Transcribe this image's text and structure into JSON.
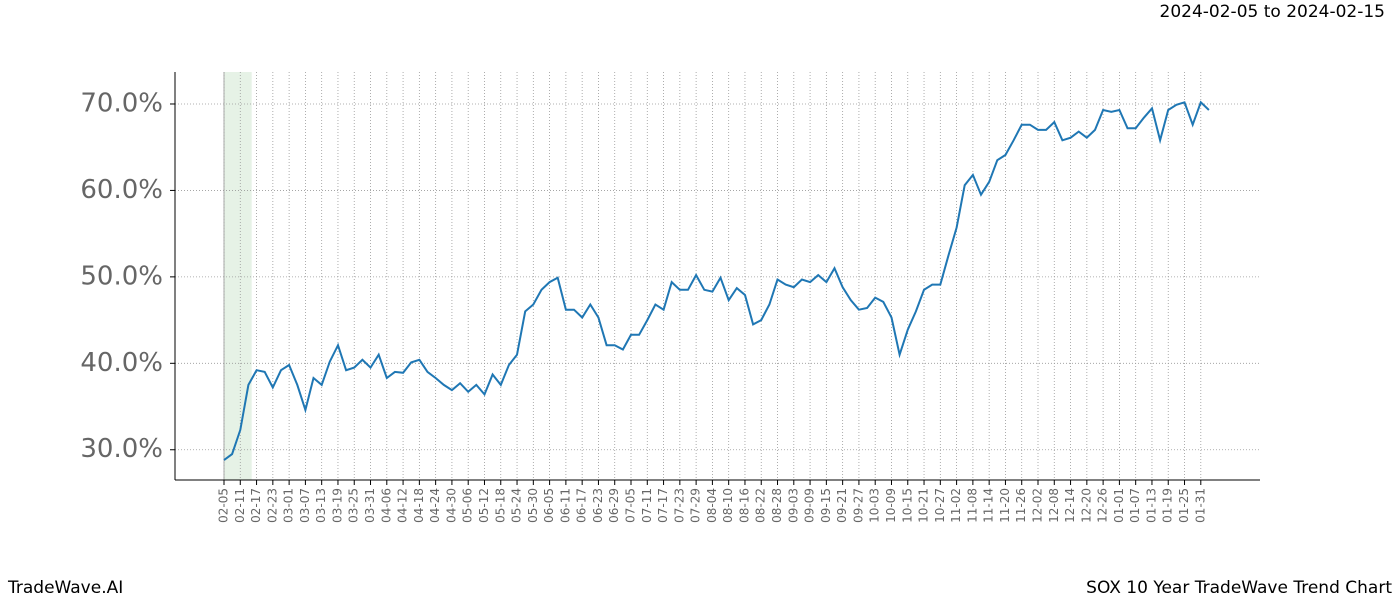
{
  "chart_data": {
    "type": "line",
    "title": "2024-02-05 to 2024-02-15",
    "footer_left": "TradeWave.AI",
    "footer_right": "SOX 10 Year TradeWave Trend Chart",
    "categories": [
      "02-05",
      null,
      "02-11",
      null,
      "02-17",
      null,
      "02-23",
      null,
      "03-01",
      null,
      "03-07",
      null,
      "03-13",
      null,
      "03-19",
      null,
      "03-25",
      null,
      "03-31",
      null,
      "04-06",
      null,
      "04-12",
      null,
      "04-18",
      null,
      "04-24",
      null,
      "04-30",
      null,
      "05-06",
      null,
      "05-12",
      null,
      "05-18",
      null,
      "05-24",
      null,
      "05-30",
      null,
      "06-05",
      null,
      "06-11",
      null,
      "06-17",
      null,
      "06-23",
      null,
      "06-29",
      null,
      "07-05",
      null,
      "07-11",
      null,
      "07-17",
      null,
      "07-23",
      null,
      "07-29",
      null,
      "08-04",
      null,
      "08-10",
      null,
      "08-16",
      null,
      "08-22",
      null,
      "08-28",
      null,
      "09-03",
      null,
      "09-09",
      null,
      "09-15",
      null,
      "09-21",
      null,
      "09-27",
      null,
      "10-03",
      null,
      "10-09",
      null,
      "10-15",
      null,
      "10-21",
      null,
      "10-27",
      null,
      "11-02",
      null,
      "11-08",
      null,
      "11-14",
      null,
      "11-20",
      null,
      "11-26",
      null,
      "12-02",
      null,
      "12-08",
      null,
      "12-14",
      null,
      "12-20",
      null,
      "12-26",
      null,
      "01-01",
      null,
      "01-07",
      null,
      "01-13",
      null,
      "01-19",
      null,
      "01-25",
      null,
      "01-31",
      null
    ],
    "series": [
      {
        "color": "#1f77b4",
        "values": [
          28.8,
          29.5,
          32.3,
          37.5,
          39.2,
          39.0,
          37.2,
          39.2,
          39.8,
          37.5,
          34.6,
          38.3,
          37.5,
          40.2,
          42.1,
          39.2,
          39.5,
          40.4,
          39.5,
          41.0,
          38.3,
          39.0,
          38.9,
          40.1,
          40.4,
          39.0,
          38.3,
          37.5,
          36.9,
          37.7,
          36.7,
          37.5,
          36.4,
          38.7,
          37.5,
          39.8,
          41.0,
          46.0,
          46.8,
          48.5,
          49.4,
          49.9,
          46.2,
          46.2,
          45.3,
          46.8,
          45.3,
          42.1,
          42.1,
          41.6,
          43.3,
          43.3,
          45.0,
          46.8,
          46.2,
          49.4,
          48.5,
          48.5,
          50.2,
          48.5,
          48.3,
          49.9,
          47.3,
          48.7,
          47.9,
          44.5,
          45.0,
          46.8,
          49.7,
          49.1,
          48.8,
          49.7,
          49.4,
          50.2,
          49.4,
          51.0,
          48.8,
          47.3,
          46.2,
          46.4,
          47.6,
          47.1,
          45.3,
          41.0,
          43.9,
          46.0,
          48.5,
          49.1,
          49.1,
          52.5,
          55.7,
          60.6,
          61.8,
          59.5,
          61.0,
          63.5,
          64.1,
          65.8,
          67.6,
          67.6,
          67.0,
          67.0,
          67.9,
          65.8,
          66.1,
          66.8,
          66.1,
          67.0,
          69.3,
          69.1,
          69.3,
          67.2,
          67.2,
          68.4,
          69.5,
          65.8,
          69.3,
          69.9,
          70.2,
          67.6,
          70.2,
          69.3
        ]
      }
    ],
    "ylim": [
      26.5,
      73.7
    ],
    "yticks": [
      {
        "value": 30,
        "label": "30.0%"
      },
      {
        "value": 40,
        "label": "40.0%"
      },
      {
        "value": 50,
        "label": "50.0%"
      },
      {
        "value": 60,
        "label": "60.0%"
      },
      {
        "value": 70,
        "label": "70.0%"
      }
    ],
    "grid": true
  }
}
